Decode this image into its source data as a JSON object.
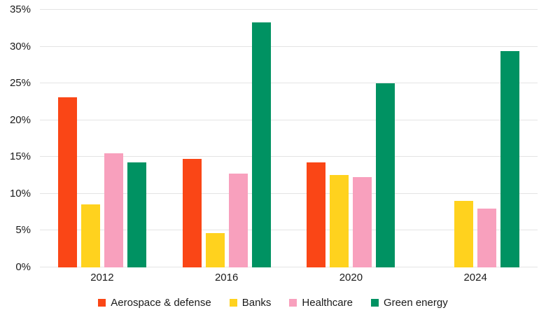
{
  "chart_data": {
    "type": "bar",
    "title": "",
    "xlabel": "",
    "ylabel": "",
    "categories": [
      "2012",
      "2016",
      "2020",
      "2024"
    ],
    "series": [
      {
        "name": "Aerospace & defense",
        "color": "#FA4616",
        "values": [
          23.1,
          14.7,
          14.3,
          null
        ]
      },
      {
        "name": "Banks",
        "color": "#FFD21E",
        "values": [
          8.6,
          4.7,
          12.6,
          9.0
        ]
      },
      {
        "name": "Healthcare",
        "color": "#F8A0BD",
        "values": [
          15.5,
          12.7,
          12.3,
          8.0
        ]
      },
      {
        "name": "Green energy",
        "color": "#009262",
        "values": [
          14.3,
          33.3,
          25.0,
          29.4
        ]
      }
    ],
    "ylim": [
      0,
      35
    ],
    "ytick_step": 5,
    "ytick_labels": [
      "0%",
      "5%",
      "10%",
      "15%",
      "20%",
      "25%",
      "30%",
      "35%"
    ],
    "ytick_format": "percent",
    "grid": true,
    "gridline_color": "#e4e4e4",
    "legend_position": "bottom",
    "legend_labels": [
      "Aerospace & defense",
      "Banks",
      "Healthcare",
      "Green energy"
    ]
  }
}
